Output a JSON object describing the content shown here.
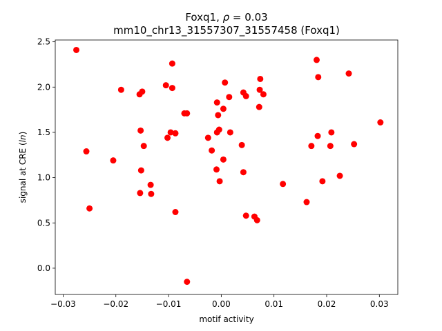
{
  "chart_data": {
    "type": "scatter",
    "title_line1_prefix": "Foxq1, ",
    "title_line1_rho": "ρ",
    "title_line1_suffix": " = 0.03",
    "title_line2": "mm10_chr13_31557307_31557458 (Foxq1)",
    "xlabel": "motif activity",
    "ylabel_prefix": "signal at CRE (",
    "ylabel_italic": "ln",
    "ylabel_suffix": ")",
    "xlim": [
      -0.0315,
      0.0335
    ],
    "ylim": [
      -0.29,
      2.52
    ],
    "xticks": [
      -0.03,
      -0.02,
      -0.01,
      0.0,
      0.01,
      0.02,
      0.03
    ],
    "xtick_labels": [
      "−0.03",
      "−0.02",
      "−0.01",
      "0.00",
      "0.01",
      "0.02",
      "0.03"
    ],
    "yticks": [
      0.0,
      0.5,
      1.0,
      1.5,
      2.0,
      2.5
    ],
    "ytick_labels": [
      "0.0",
      "0.5",
      "1.0",
      "1.5",
      "2.0",
      "2.5"
    ],
    "grid": false,
    "marker_color": "#ff0000",
    "points": [
      {
        "x": -0.0275,
        "y": 2.41
      },
      {
        "x": -0.0256,
        "y": 1.29
      },
      {
        "x": -0.025,
        "y": 0.66
      },
      {
        "x": -0.0205,
        "y": 1.19
      },
      {
        "x": -0.019,
        "y": 1.97
      },
      {
        "x": -0.0155,
        "y": 1.92
      },
      {
        "x": -0.015,
        "y": 1.95
      },
      {
        "x": -0.0153,
        "y": 1.52
      },
      {
        "x": -0.0147,
        "y": 1.35
      },
      {
        "x": -0.0152,
        "y": 1.08
      },
      {
        "x": -0.0154,
        "y": 0.83
      },
      {
        "x": -0.0134,
        "y": 0.92
      },
      {
        "x": -0.0133,
        "y": 0.82
      },
      {
        "x": -0.0105,
        "y": 2.02
      },
      {
        "x": -0.0093,
        "y": 2.26
      },
      {
        "x": -0.0093,
        "y": 1.99
      },
      {
        "x": -0.0096,
        "y": 1.5
      },
      {
        "x": -0.0102,
        "y": 1.44
      },
      {
        "x": -0.0087,
        "y": 1.49
      },
      {
        "x": -0.0087,
        "y": 0.62
      },
      {
        "x": -0.007,
        "y": 1.71
      },
      {
        "x": -0.0065,
        "y": 1.71
      },
      {
        "x": -0.0065,
        "y": -0.15
      },
      {
        "x": -0.0025,
        "y": 1.44
      },
      {
        "x": -0.0018,
        "y": 1.3
      },
      {
        "x": -0.0008,
        "y": 1.83
      },
      {
        "x": -0.0006,
        "y": 1.69
      },
      {
        "x": -0.0008,
        "y": 1.5
      },
      {
        "x": -0.0004,
        "y": 1.53
      },
      {
        "x": -0.0009,
        "y": 1.09
      },
      {
        "x": -0.0003,
        "y": 0.96
      },
      {
        "x": 0.0004,
        "y": 1.2
      },
      {
        "x": 0.0004,
        "y": 1.76
      },
      {
        "x": 0.0007,
        "y": 2.05
      },
      {
        "x": 0.0015,
        "y": 1.89
      },
      {
        "x": 0.0017,
        "y": 1.5
      },
      {
        "x": 0.0039,
        "y": 1.36
      },
      {
        "x": 0.0042,
        "y": 1.94
      },
      {
        "x": 0.0047,
        "y": 1.9
      },
      {
        "x": 0.0042,
        "y": 1.06
      },
      {
        "x": 0.0047,
        "y": 0.58
      },
      {
        "x": 0.0063,
        "y": 0.57
      },
      {
        "x": 0.0068,
        "y": 0.53
      },
      {
        "x": 0.0074,
        "y": 2.09
      },
      {
        "x": 0.0073,
        "y": 1.97
      },
      {
        "x": 0.008,
        "y": 1.92
      },
      {
        "x": 0.0072,
        "y": 1.78
      },
      {
        "x": 0.0117,
        "y": 0.93
      },
      {
        "x": 0.0162,
        "y": 0.73
      },
      {
        "x": 0.0171,
        "y": 1.35
      },
      {
        "x": 0.0181,
        "y": 2.3
      },
      {
        "x": 0.0184,
        "y": 2.11
      },
      {
        "x": 0.0183,
        "y": 1.46
      },
      {
        "x": 0.0192,
        "y": 0.96
      },
      {
        "x": 0.0209,
        "y": 1.5
      },
      {
        "x": 0.0207,
        "y": 1.35
      },
      {
        "x": 0.0225,
        "y": 1.02
      },
      {
        "x": 0.0242,
        "y": 2.15
      },
      {
        "x": 0.0252,
        "y": 1.37
      },
      {
        "x": 0.0302,
        "y": 1.61
      }
    ]
  }
}
